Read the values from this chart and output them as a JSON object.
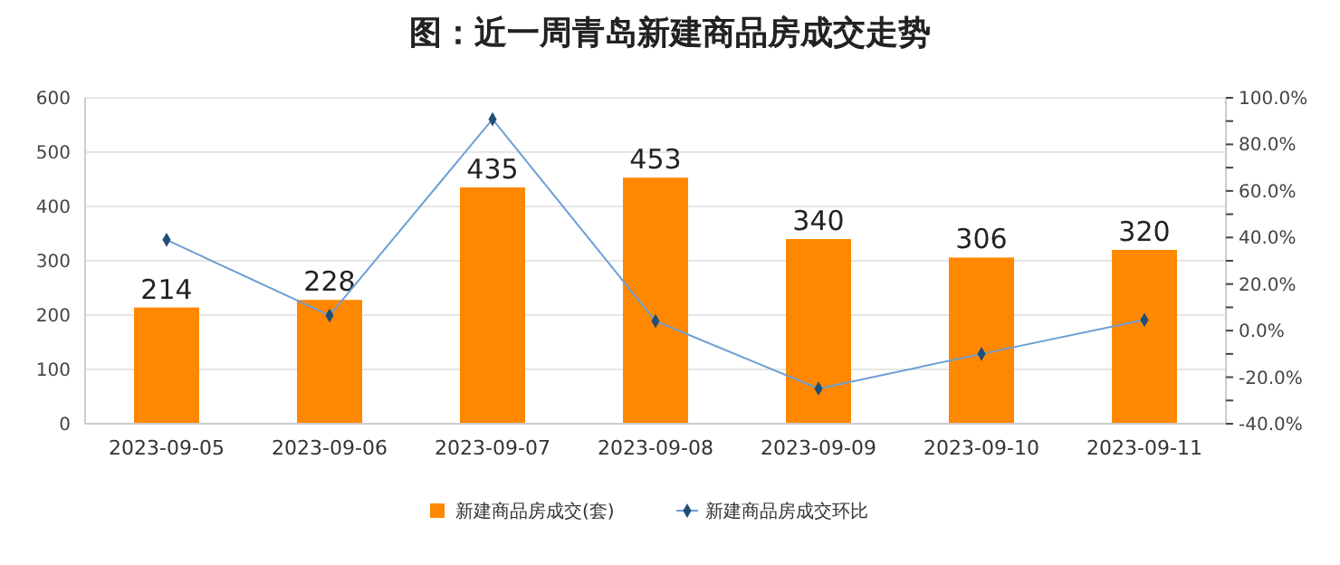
{
  "chart_data": {
    "type": "bar",
    "title": "图：近一周青岛新建商品房成交走势",
    "categories": [
      "2023-09-05",
      "2023-09-06",
      "2023-09-07",
      "2023-09-08",
      "2023-09-09",
      "2023-09-10",
      "2023-09-11"
    ],
    "series": [
      {
        "name": "新建商品房成交(套)",
        "color": "#ff8800",
        "values": [
          214,
          228,
          435,
          453,
          340,
          306,
          320
        ],
        "value_labels": [
          "214",
          "228",
          "435",
          "453",
          "340",
          "306",
          "320"
        ]
      },
      {
        "name": "新建商品房成交环比",
        "type": "line",
        "axis": "y2",
        "color": "#6c9fd4",
        "values": [
          39,
          6.5,
          90.8,
          4.1,
          -24.9,
          -10,
          4.6
        ]
      }
    ],
    "ylim": [
      0,
      600
    ],
    "yticks": [
      0,
      100,
      200,
      300,
      400,
      500,
      600
    ],
    "y2lim": [
      -40,
      100
    ],
    "y2ticks": [
      {
        "value": -40,
        "label": "-40.0%"
      },
      {
        "value": -30,
        "label": null
      },
      {
        "value": -20,
        "label": "-20.0%"
      },
      {
        "value": -10,
        "label": null
      },
      {
        "value": 0,
        "label": "0.0%"
      },
      {
        "value": 10,
        "label": null
      },
      {
        "value": 20,
        "label": "20.0%"
      },
      {
        "value": 30,
        "label": null
      },
      {
        "value": 40,
        "label": "40.0%"
      },
      {
        "value": 50,
        "label": null
      },
      {
        "value": 60,
        "label": "60.0%"
      },
      {
        "value": 70,
        "label": null
      },
      {
        "value": 80,
        "label": "80.0%"
      },
      {
        "value": 90,
        "label": null
      },
      {
        "value": 100,
        "label": "100.0%"
      }
    ],
    "grid": "y",
    "legend": "bottom",
    "marker": "diamond",
    "line_style": "solid"
  }
}
